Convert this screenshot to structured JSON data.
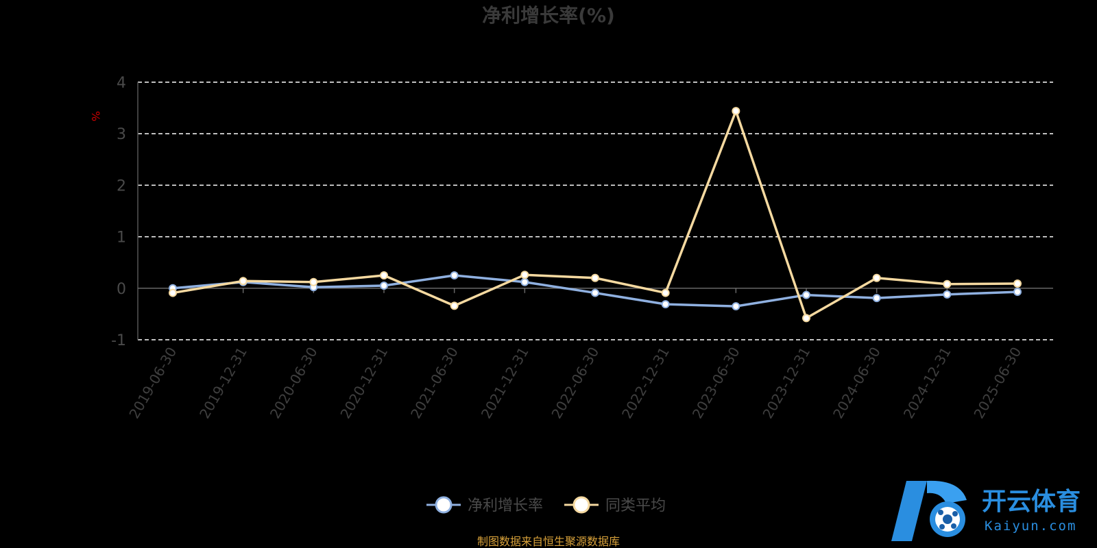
{
  "chart_data": {
    "type": "line",
    "title": "净利增长率(%)",
    "ylabel": "%",
    "ylim": [
      -1,
      4
    ],
    "yticks": [
      "-1",
      "0",
      "1",
      "2",
      "3",
      "4"
    ],
    "grid": true,
    "legend_position": "bottom",
    "categories": [
      "2019-06-30",
      "2019-12-31",
      "2020-06-30",
      "2020-12-31",
      "2021-06-30",
      "2021-12-31",
      "2022-06-30",
      "2022-12-31",
      "2023-06-30",
      "2023-12-31",
      "2024-06-30",
      "2024-12-31",
      "2025-06-30"
    ],
    "series": [
      {
        "name": "净利增长率",
        "color": "#8fb0e0",
        "values": [
          0.0,
          0.12,
          0.02,
          0.05,
          0.25,
          0.12,
          -0.09,
          -0.31,
          -0.35,
          -0.13,
          -0.19,
          -0.12,
          -0.07
        ]
      },
      {
        "name": "同类平均",
        "color": "#f5d9a0",
        "values": [
          -0.09,
          0.14,
          0.12,
          0.25,
          -0.34,
          0.26,
          0.2,
          -0.09,
          3.44,
          -0.58,
          0.2,
          0.08,
          0.09
        ]
      }
    ]
  },
  "source_text": "制图数据来自恒生聚源数据库",
  "watermark": {
    "cn": "开云体育",
    "en": "Kaiyun.com"
  }
}
